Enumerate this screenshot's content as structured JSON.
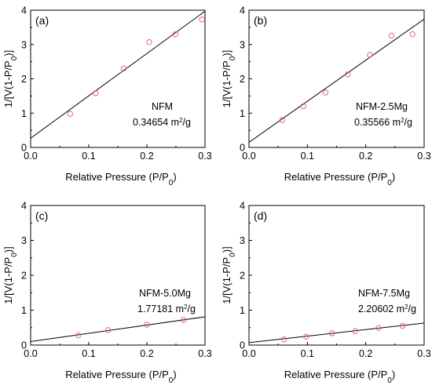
{
  "chart_data": [
    {
      "type": "scatter",
      "panel_label": "(a)",
      "sample": "NFM",
      "surface_area": "0.34654 m²/g",
      "surface_area_value": "0.34654 m",
      "surface_area_exp": "2",
      "surface_area_unit": "/g",
      "xlabel_main": "Relative Pressure (P/P",
      "xlabel_sub": "0",
      "xlabel_end": ")",
      "ylabel_main": "1/[V(1-P/P",
      "ylabel_sub": "0",
      "ylabel_end": ")]",
      "xlim": [
        0.0,
        0.3
      ],
      "ylim": [
        0,
        4
      ],
      "xticks": [
        "0.0",
        "0.1",
        "0.2",
        "0.3"
      ],
      "yticks": [
        "0",
        "1",
        "2",
        "3",
        "4"
      ],
      "points": [
        {
          "x": 0.068,
          "y": 0.98
        },
        {
          "x": 0.112,
          "y": 1.58
        },
        {
          "x": 0.16,
          "y": 2.3
        },
        {
          "x": 0.204,
          "y": 3.07
        },
        {
          "x": 0.249,
          "y": 3.3
        },
        {
          "x": 0.295,
          "y": 3.73
        }
      ],
      "fit_line": {
        "x0": 0.0,
        "y0": 0.27,
        "x1": 0.3,
        "y1": 3.97
      }
    },
    {
      "type": "scatter",
      "panel_label": "(b)",
      "sample": "NFM-2.5Mg",
      "surface_area": "0.35566 m²/g",
      "surface_area_value": "0.35566 m",
      "surface_area_exp": "2",
      "surface_area_unit": "/g",
      "xlabel_main": "Relative Pressure (P/P",
      "xlabel_sub": "0",
      "xlabel_end": ")",
      "ylabel_main": "1/[V(1-P/P",
      "ylabel_sub": "0",
      "ylabel_end": ")]",
      "xlim": [
        0.0,
        0.3
      ],
      "ylim": [
        0,
        4
      ],
      "xticks": [
        "0.0",
        "0.1",
        "0.2",
        "0.3"
      ],
      "yticks": [
        "0",
        "1",
        "2",
        "3",
        "4"
      ],
      "points": [
        {
          "x": 0.057,
          "y": 0.8
        },
        {
          "x": 0.093,
          "y": 1.2
        },
        {
          "x": 0.131,
          "y": 1.6
        },
        {
          "x": 0.169,
          "y": 2.13
        },
        {
          "x": 0.207,
          "y": 2.7
        },
        {
          "x": 0.244,
          "y": 3.26
        },
        {
          "x": 0.28,
          "y": 3.3
        }
      ],
      "fit_line": {
        "x0": 0.0,
        "y0": 0.15,
        "x1": 0.3,
        "y1": 3.74
      }
    },
    {
      "type": "scatter",
      "panel_label": "(c)",
      "sample": "NFM-5.0Mg",
      "surface_area": "1.77181 m²/g",
      "surface_area_value": "1.77181 m",
      "surface_area_exp": "2",
      "surface_area_unit": "/g",
      "xlabel_main": "Relative Pressure (P/P",
      "xlabel_sub": "0",
      "xlabel_end": ")",
      "ylabel_main": "1/[V(1-P/P",
      "ylabel_sub": "0",
      "ylabel_end": ")]",
      "xlim": [
        0.0,
        0.3
      ],
      "ylim": [
        0,
        4
      ],
      "xticks": [
        "0.0",
        "0.1",
        "0.2",
        "0.3"
      ],
      "yticks": [
        "0",
        "1",
        "2",
        "3",
        "4"
      ],
      "points": [
        {
          "x": 0.082,
          "y": 0.28
        },
        {
          "x": 0.133,
          "y": 0.43
        },
        {
          "x": 0.2,
          "y": 0.58
        },
        {
          "x": 0.263,
          "y": 0.72
        }
      ],
      "fit_line": {
        "x0": 0.0,
        "y0": 0.1,
        "x1": 0.3,
        "y1": 0.81
      }
    },
    {
      "type": "scatter",
      "panel_label": "(d)",
      "sample": "NFM-7.5Mg",
      "surface_area": "2.20602 m²/g",
      "surface_area_value": "2.20602 m",
      "surface_area_exp": "2",
      "surface_area_unit": "/g",
      "xlabel_main": "Relative Pressure (P/P",
      "xlabel_sub": "0",
      "xlabel_end": ")",
      "ylabel_main": "1/[V(1-P/P",
      "ylabel_sub": "0",
      "ylabel_end": ")]",
      "xlim": [
        0.0,
        0.3
      ],
      "ylim": [
        0,
        4
      ],
      "xticks": [
        "0.0",
        "0.1",
        "0.2",
        "0.3"
      ],
      "yticks": [
        "0",
        "1",
        "2",
        "3",
        "4"
      ],
      "points": [
        {
          "x": 0.06,
          "y": 0.16
        },
        {
          "x": 0.098,
          "y": 0.24
        },
        {
          "x": 0.142,
          "y": 0.34
        },
        {
          "x": 0.182,
          "y": 0.4
        },
        {
          "x": 0.222,
          "y": 0.49
        },
        {
          "x": 0.263,
          "y": 0.55
        }
      ],
      "fit_line": {
        "x0": 0.0,
        "y0": 0.07,
        "x1": 0.3,
        "y1": 0.63
      }
    }
  ],
  "colors": {
    "marker": "#e8686b",
    "line": "#000000",
    "axis": "#000000"
  }
}
